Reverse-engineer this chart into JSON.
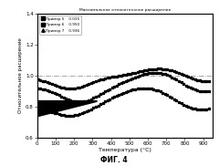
{
  "title": "Максимальное относительное расширение",
  "xlabel": "Температура (°C)",
  "ylabel": "Относительное расширение",
  "fig_label": "ФИГ. 4",
  "legend_entries": [
    {
      "label": "Пример 5",
      "value": "0.035"
    },
    {
      "label": "Пример 6",
      "value": "0.950"
    },
    {
      "label": "Пример 7",
      "value": "0.936"
    }
  ],
  "xlim": [
    0,
    950
  ],
  "ylim": [
    0.6,
    1.4
  ],
  "xticks": [
    0,
    100,
    200,
    300,
    400,
    500,
    600,
    700,
    800,
    900
  ],
  "yticks": [
    0.6,
    0.8,
    1.0,
    1.2,
    1.4
  ],
  "hline_y": 1.0,
  "background_color": "#ffffff"
}
